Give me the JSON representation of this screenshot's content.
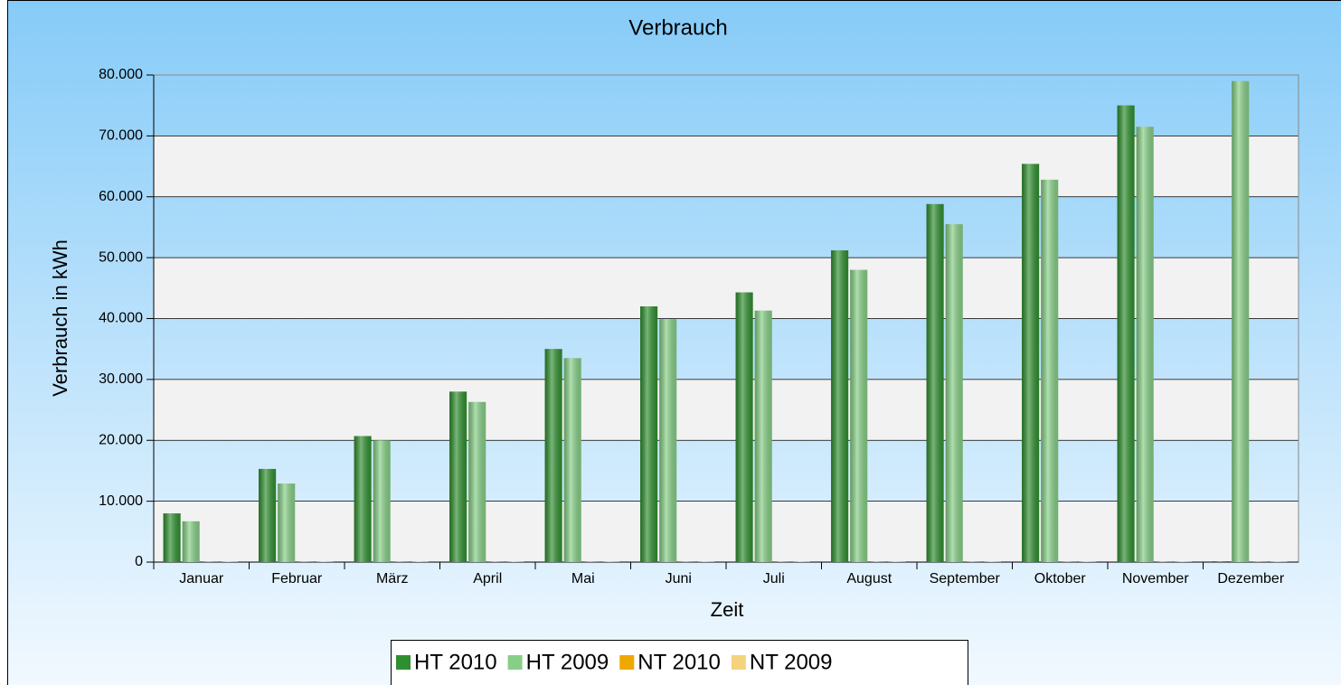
{
  "chart_data": {
    "type": "bar",
    "title": "Verbrauch",
    "x_label": "Zeit",
    "y_label": "Verbrauch in kWh",
    "categories": [
      "Januar",
      "Februar",
      "März",
      "April",
      "Mai",
      "Juni",
      "Juli",
      "August",
      "September",
      "Oktober",
      "November",
      "Dezember"
    ],
    "series": [
      {
        "name": "HT 2010",
        "color": "#2f8f2f",
        "values": [
          8000,
          15300,
          20700,
          28000,
          35000,
          42000,
          44300,
          51200,
          58800,
          65400,
          75000,
          0
        ]
      },
      {
        "name": "HT 2009",
        "color": "#86cf86",
        "values": [
          6700,
          12900,
          20000,
          26300,
          33500,
          39900,
          41300,
          48000,
          55500,
          62800,
          71500,
          79000
        ]
      },
      {
        "name": "NT 2010",
        "color": "#eea800",
        "values": [
          0,
          0,
          0,
          0,
          0,
          0,
          0,
          0,
          0,
          0,
          0,
          0
        ]
      },
      {
        "name": "NT 2009",
        "color": "#f5d27e",
        "values": [
          0,
          0,
          0,
          0,
          0,
          0,
          0,
          0,
          0,
          0,
          0,
          0
        ]
      }
    ],
    "ylim": [
      0,
      80000
    ],
    "yticks": [
      0,
      {
        "value": 10000,
        "label": "10.000"
      },
      {
        "value": 20000,
        "label": "20.000"
      },
      {
        "value": 30000,
        "label": "30.000"
      },
      {
        "value": 40000,
        "label": "40.000"
      },
      {
        "value": 50000,
        "label": "50.000"
      },
      {
        "value": 60000,
        "label": "60.000"
      },
      {
        "value": 70000,
        "label": "70.000"
      },
      {
        "value": 80000,
        "label": "80.000"
      }
    ],
    "grid": true,
    "legend": "bottom"
  }
}
